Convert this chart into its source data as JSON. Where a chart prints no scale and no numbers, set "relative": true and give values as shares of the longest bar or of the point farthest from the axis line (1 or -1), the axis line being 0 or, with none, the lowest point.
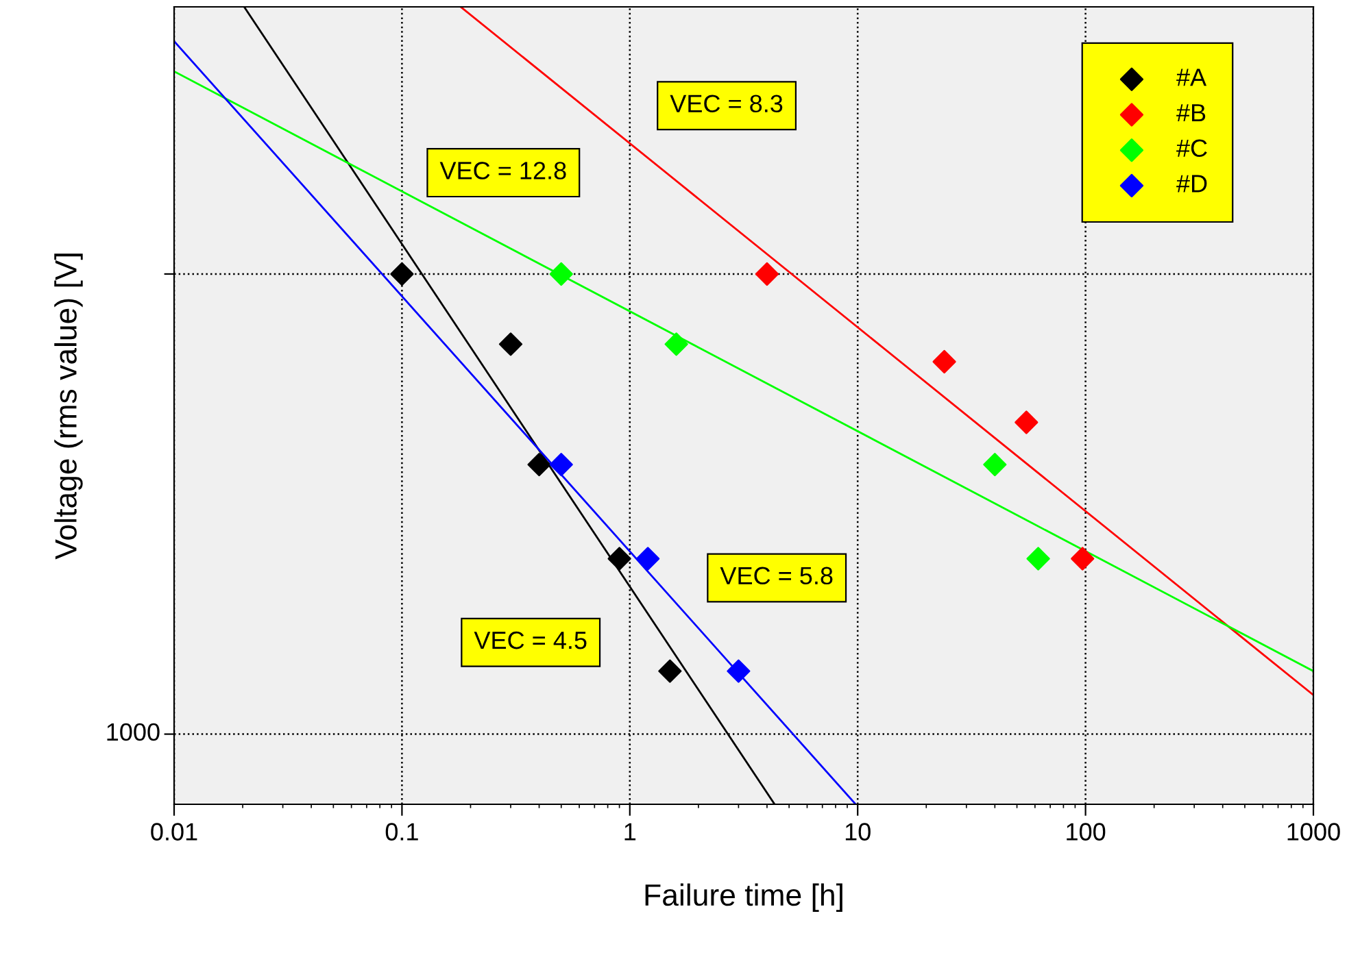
{
  "chart_data": {
    "type": "scatter",
    "xlabel": "Failure time [h]",
    "ylabel": "Voltage (rms value) [V]",
    "log": "x",
    "relative": true,
    "xlim": [
      0.01,
      1000
    ],
    "xticks": [
      0.01,
      0.1,
      1,
      10,
      100,
      1000
    ],
    "grid": "x",
    "legend": "top right",
    "ref_lines": [
      {
        "axis": "y",
        "value": 0.088,
        "label": null,
        "line_style": "dotted",
        "color": "#000000"
      },
      {
        "axis": "y",
        "value": 0.665,
        "label": null,
        "line_style": "dotted",
        "color": "#000000"
      }
    ],
    "series": [
      {
        "name": "#A",
        "marker": "diamond",
        "color": "#000000",
        "x": [
          0.1,
          0.3,
          0.4,
          0.9,
          1.5
        ],
        "values": [
          0.665,
          0.577,
          0.426,
          0.308,
          0.167
        ]
      },
      {
        "name": "#B",
        "marker": "diamond",
        "color": "#ff0000",
        "x": [
          4,
          24,
          55,
          97
        ],
        "values": [
          0.665,
          0.555,
          0.479,
          0.308
        ]
      },
      {
        "name": "#C",
        "marker": "diamond",
        "color": "#00ff00",
        "x": [
          0.5,
          1.6,
          40,
          62
        ],
        "values": [
          0.665,
          0.577,
          0.426,
          0.308
        ]
      },
      {
        "name": "#D",
        "marker": "diamond",
        "color": "#0000ff",
        "x": [
          0.5,
          1.2,
          3
        ],
        "values": [
          0.426,
          0.308,
          0.167
        ]
      },
      {
        "type": "line",
        "color": "#000000",
        "x": [
          0.0203,
          4.32
        ],
        "values": [
          1,
          0
        ]
      },
      {
        "type": "line",
        "color": "#ff0000",
        "x": [
          0.181,
          1000
        ],
        "values": [
          1,
          0.137
        ]
      },
      {
        "type": "line",
        "color": "#00ff00",
        "x": [
          0.01,
          1000
        ],
        "values": [
          0.919,
          0.167
        ]
      },
      {
        "type": "line",
        "color": "#0000ff",
        "x": [
          0.01,
          9.8
        ],
        "values": [
          0.957,
          0
        ]
      }
    ],
    "annotations": [
      "VEC = 8.3",
      "VEC = 12.8",
      "VEC = 5.8",
      "VEC = 4.5",
      "1000"
    ]
  }
}
